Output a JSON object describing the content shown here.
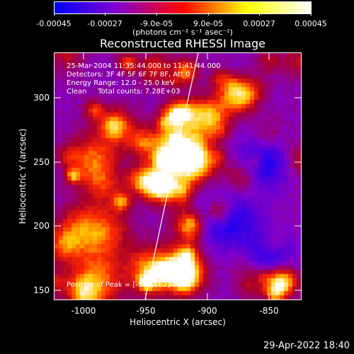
{
  "colorbar": {
    "tick_labels": [
      "-0.00045",
      "-0.00027",
      "-9.0e-05",
      "9.0e-05",
      "0.00027",
      "0.00045"
    ],
    "units": "(photons cm⁻² s⁻¹ asec⁻²)",
    "colors": [
      "#0000ff",
      "#8800cc",
      "#ff0000",
      "#ffff00",
      "#ffffff"
    ]
  },
  "plot": {
    "title": "Reconstructed RHESSI Image",
    "annotations": {
      "time_range": "25-Mar-2004 11:35:44.000 to 11:41:44.000",
      "detectors": "Detectors: 3F 4F 5F 6F 7F 8F, Att 0",
      "energy_range": "Energy Range: 12.0 - 25.0 keV",
      "clean": "Clean     Total counts: 7.28E+03",
      "peak": "Position of Peak = [-983,162]"
    },
    "y_axis_label": "Heliocentric Y (arcsec)",
    "x_axis_label": "Heliocentric X (arcsec)",
    "y_ticks": [
      "300",
      "250",
      "200",
      "150"
    ],
    "x_ticks": [
      "-1000",
      "-950",
      "-900",
      "-850"
    ]
  },
  "footer": {
    "date": "29-Apr-2022 18:40"
  }
}
